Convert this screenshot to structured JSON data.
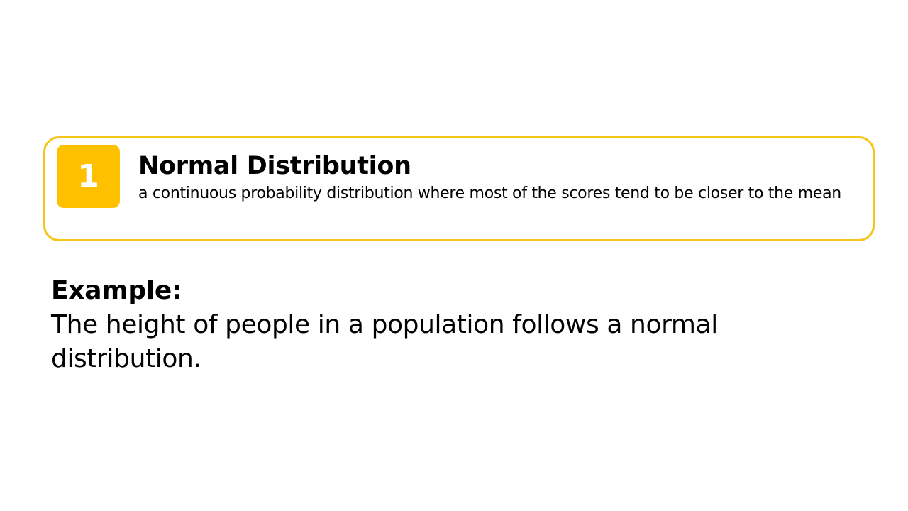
{
  "definition": {
    "number": "1",
    "term": "Normal Distribution",
    "description": "a continuous probability distribution where most of the scores tend to be closer to the mean"
  },
  "example": {
    "label": "Example:",
    "text": "The height of people in a population follows a normal distribution."
  },
  "colors": {
    "accent": "#ffc000",
    "card_border": "#f5c518"
  }
}
